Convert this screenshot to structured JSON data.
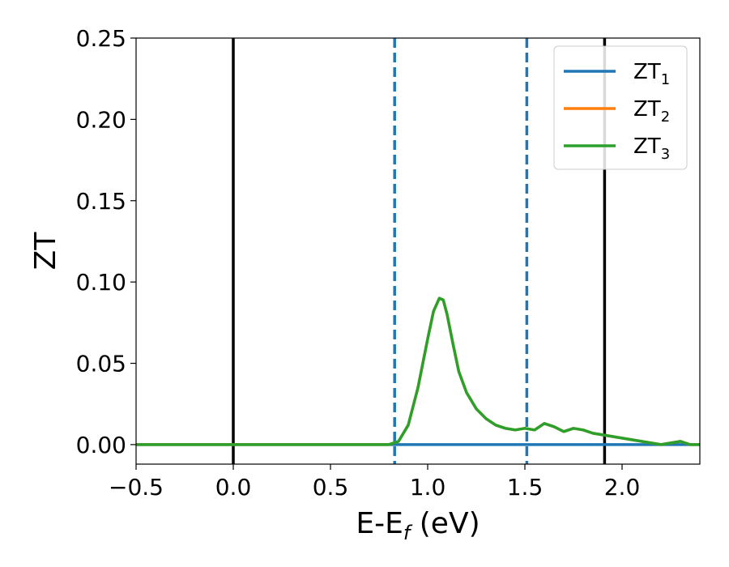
{
  "chart_data": {
    "type": "line",
    "xlabel": "E-E",
    "xlabel_subscript": "f",
    "xlabel_unit": " (eV)",
    "ylabel": "ZT",
    "xlim": [
      -0.5,
      2.4
    ],
    "ylim": [
      -0.012,
      0.25
    ],
    "x_ticks": [
      {
        "value": -0.5,
        "label": "−0.5"
      },
      {
        "value": 0.0,
        "label": "0.0"
      },
      {
        "value": 0.5,
        "label": "0.5"
      },
      {
        "value": 1.0,
        "label": "1.0"
      },
      {
        "value": 1.5,
        "label": "1.5"
      },
      {
        "value": 2.0,
        "label": "2.0"
      }
    ],
    "y_ticks": [
      {
        "value": 0.0,
        "label": "0.00"
      },
      {
        "value": 0.05,
        "label": "0.05"
      },
      {
        "value": 0.1,
        "label": "0.10"
      },
      {
        "value": 0.15,
        "label": "0.15"
      },
      {
        "value": 0.2,
        "label": "0.20"
      },
      {
        "value": 0.25,
        "label": "0.25"
      }
    ],
    "vertical_lines": [
      {
        "x": 0.0,
        "style": "solid",
        "color": "#000000"
      },
      {
        "x": 1.91,
        "style": "solid",
        "color": "#000000"
      },
      {
        "x": 0.83,
        "style": "dashed",
        "color": "#1f77b4"
      },
      {
        "x": 1.51,
        "style": "dashed",
        "color": "#1f77b4"
      }
    ],
    "legend_position": "top-right",
    "series": [
      {
        "name": "ZT",
        "subscript": "1",
        "color": "#1f77b4",
        "x": [
          -0.5,
          2.4
        ],
        "y": [
          0.0,
          0.0
        ]
      },
      {
        "name": "ZT",
        "subscript": "2",
        "color": "#ff7f0e",
        "x": [
          -0.5,
          0.8,
          0.85,
          0.9,
          0.95,
          1.0,
          1.03,
          1.06,
          1.08,
          1.1,
          1.13,
          1.16,
          1.2,
          1.25,
          1.3,
          1.35,
          1.4,
          1.45,
          1.5,
          1.55,
          1.6,
          1.65,
          1.7,
          1.75,
          1.8,
          1.85,
          1.9,
          1.95,
          2.0,
          2.05,
          2.1,
          2.15,
          2.2,
          2.25,
          2.3,
          2.35,
          2.4
        ],
        "y": [
          0.0,
          0.0,
          0.002,
          0.012,
          0.035,
          0.065,
          0.082,
          0.09,
          0.089,
          0.08,
          0.062,
          0.045,
          0.032,
          0.022,
          0.016,
          0.012,
          0.01,
          0.009,
          0.01,
          0.009,
          0.013,
          0.011,
          0.008,
          0.01,
          0.009,
          0.007,
          0.006,
          0.005,
          0.004,
          0.003,
          0.002,
          0.001,
          0.0,
          0.001,
          0.002,
          0.0,
          0.0
        ]
      },
      {
        "name": "ZT",
        "subscript": "3",
        "color": "#2ca02c",
        "x": [
          -0.5,
          0.8,
          0.85,
          0.9,
          0.95,
          1.0,
          1.03,
          1.06,
          1.08,
          1.1,
          1.13,
          1.16,
          1.2,
          1.25,
          1.3,
          1.35,
          1.4,
          1.45,
          1.5,
          1.55,
          1.6,
          1.65,
          1.7,
          1.75,
          1.8,
          1.85,
          1.9,
          1.95,
          2.0,
          2.05,
          2.1,
          2.15,
          2.2,
          2.25,
          2.3,
          2.35,
          2.4
        ],
        "y": [
          0.0,
          0.0,
          0.002,
          0.012,
          0.035,
          0.065,
          0.082,
          0.09,
          0.089,
          0.08,
          0.062,
          0.045,
          0.032,
          0.022,
          0.016,
          0.012,
          0.01,
          0.009,
          0.01,
          0.009,
          0.013,
          0.011,
          0.008,
          0.01,
          0.009,
          0.007,
          0.006,
          0.005,
          0.004,
          0.003,
          0.002,
          0.001,
          0.0,
          0.001,
          0.002,
          0.0,
          0.0
        ]
      }
    ]
  }
}
